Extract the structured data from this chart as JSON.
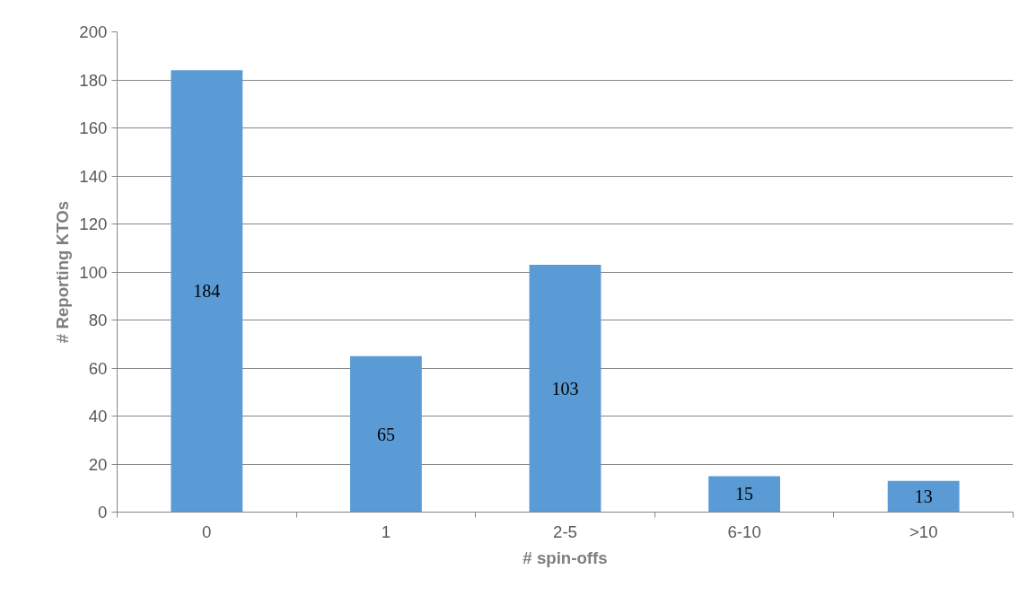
{
  "chart_data": {
    "type": "bar",
    "xlabel": "# spin-offs",
    "ylabel": "# Reporting KTOs",
    "categories": [
      "0",
      "1",
      "2-5",
      "6-10",
      ">10"
    ],
    "values": [
      184,
      65,
      103,
      15,
      13
    ],
    "color": "#5b9bd5",
    "ylim": [
      0,
      200
    ],
    "yticks": [
      0,
      20,
      40,
      60,
      80,
      100,
      120,
      140,
      160,
      180,
      200
    ],
    "grid": "y",
    "data_labels": true
  }
}
